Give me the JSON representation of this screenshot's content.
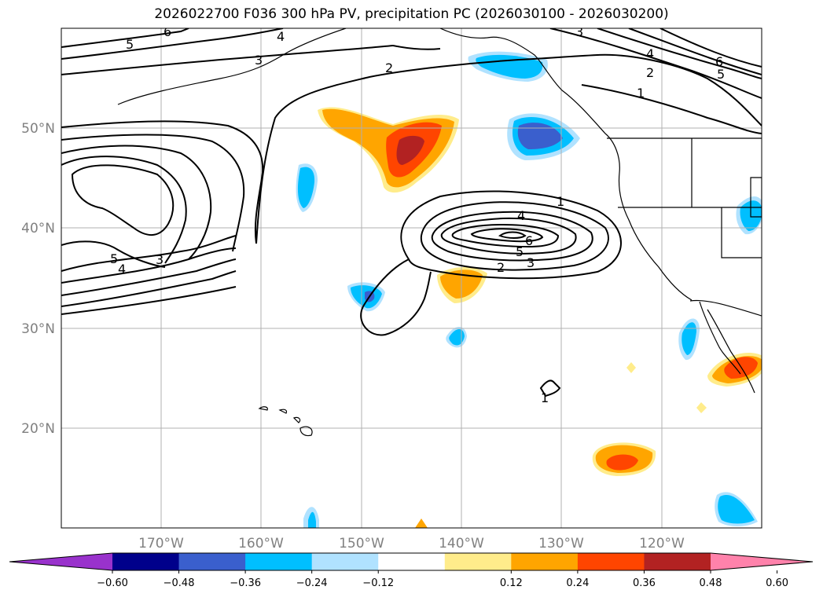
{
  "title": "2026022700 F036 300 hPa PV, precipitation PC (2026030100 - 2026030200)",
  "map": {
    "projection": "PlateCarree",
    "lon_range": [
      -180,
      -110
    ],
    "lat_range": [
      10,
      60
    ],
    "gridlines": true,
    "grid_color": "#b0b0b0",
    "lat_ticks": [
      20,
      30,
      40,
      50
    ],
    "lon_ticks": [
      -170,
      -160,
      -150,
      -140,
      -130,
      -120
    ],
    "lat_labels": [
      "20°N",
      "30°N",
      "40°N",
      "50°N"
    ],
    "lon_labels": [
      "170°W",
      "160°W",
      "150°W",
      "140°W",
      "130°W",
      "120°W"
    ]
  },
  "pv_contour_labels": [
    "1",
    "2",
    "3",
    "4",
    "5",
    "6"
  ],
  "colorbar": {
    "extend": "both",
    "tick_labels": [
      "−0.60",
      "−0.48",
      "−0.36",
      "−0.24",
      "−0.12",
      "0.12",
      "0.24",
      "0.36",
      "0.48",
      "0.60"
    ],
    "colors": [
      "#9932cc",
      "#00008b",
      "#3a5fcd",
      "#00bfff",
      "#b0e2ff",
      "#ffffff",
      "#ffec8b",
      "#ffa500",
      "#ff4500",
      "#b22222",
      "#ff82ab"
    ]
  }
}
